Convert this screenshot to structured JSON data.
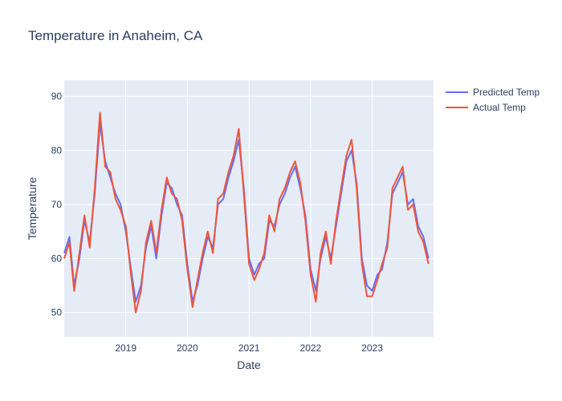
{
  "chart_data": {
    "type": "line",
    "title": "Temperature in Anaheim, CA",
    "xlabel": "Date",
    "ylabel": "Temperature",
    "xlim": [
      "2018-01-01",
      "2023-12-31"
    ],
    "ylim": [
      45.5,
      93
    ],
    "x_ticks": [
      "2019",
      "2020",
      "2021",
      "2022",
      "2023"
    ],
    "y_ticks": [
      50,
      60,
      70,
      80,
      90
    ],
    "grid": true,
    "legend_position": "top-right",
    "x": [
      "2018-01-01",
      "2018-02-01",
      "2018-03-01",
      "2018-04-01",
      "2018-05-01",
      "2018-06-01",
      "2018-07-01",
      "2018-08-01",
      "2018-09-01",
      "2018-10-01",
      "2018-11-01",
      "2018-12-01",
      "2019-01-01",
      "2019-02-01",
      "2019-03-01",
      "2019-04-01",
      "2019-05-01",
      "2019-06-01",
      "2019-07-01",
      "2019-08-01",
      "2019-09-01",
      "2019-10-01",
      "2019-11-01",
      "2019-12-01",
      "2020-01-01",
      "2020-02-01",
      "2020-03-01",
      "2020-04-01",
      "2020-05-01",
      "2020-06-01",
      "2020-07-01",
      "2020-08-01",
      "2020-09-01",
      "2020-10-01",
      "2020-11-01",
      "2020-12-01",
      "2021-01-01",
      "2021-02-01",
      "2021-03-01",
      "2021-04-01",
      "2021-05-01",
      "2021-06-01",
      "2021-07-01",
      "2021-08-01",
      "2021-09-01",
      "2021-10-01",
      "2021-11-01",
      "2021-12-01",
      "2022-01-01",
      "2022-02-01",
      "2022-03-01",
      "2022-04-01",
      "2022-05-01",
      "2022-06-01",
      "2022-07-01",
      "2022-08-01",
      "2022-09-01",
      "2022-10-01",
      "2022-11-01",
      "2022-12-01",
      "2023-01-01",
      "2023-02-01",
      "2023-03-01",
      "2023-04-01",
      "2023-05-01",
      "2023-06-01",
      "2023-07-01",
      "2023-08-01",
      "2023-09-01",
      "2023-10-01",
      "2023-11-01",
      "2023-12-01"
    ],
    "series": [
      {
        "name": "Predicted Temp",
        "color": "#636efa",
        "values": [
          61,
          64,
          55,
          60,
          67,
          63,
          72,
          85,
          78,
          75,
          72,
          70,
          65,
          58,
          52,
          55,
          62,
          66,
          60,
          68,
          74,
          73,
          70,
          68,
          59,
          52,
          55,
          60,
          64,
          62,
          70,
          71,
          75,
          78,
          82,
          73,
          60,
          57,
          59,
          60,
          67,
          66,
          70,
          72,
          75,
          77,
          73,
          68,
          58,
          54,
          60,
          64,
          60,
          66,
          72,
          78,
          80,
          74,
          60,
          55,
          54,
          57,
          58,
          63,
          72,
          74,
          76,
          70,
          71,
          66,
          64,
          60
        ]
      },
      {
        "name": "Actual Temp",
        "color": "#ef553b",
        "values": [
          60,
          63,
          54,
          61,
          68,
          62,
          73,
          87,
          77,
          76,
          71,
          69,
          66,
          57,
          50,
          54,
          63,
          67,
          61,
          69,
          75,
          72,
          71,
          67,
          58,
          51,
          56,
          61,
          65,
          61,
          71,
          72,
          76,
          79,
          84,
          72,
          59,
          56,
          58,
          61,
          68,
          65,
          71,
          73,
          76,
          78,
          74,
          67,
          57,
          52,
          61,
          65,
          59,
          67,
          73,
          79,
          82,
          73,
          59,
          53,
          53,
          56,
          59,
          62,
          73,
          75,
          77,
          69,
          70,
          65,
          63,
          59
        ]
      }
    ]
  }
}
